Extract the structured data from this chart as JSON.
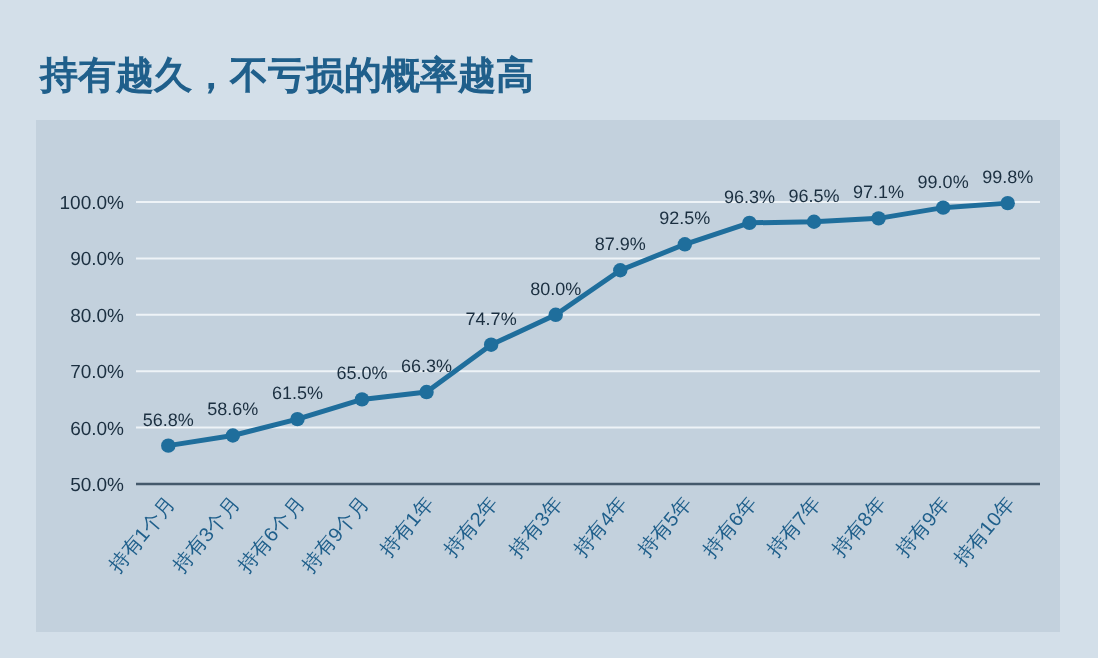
{
  "chart_data": {
    "type": "line",
    "title": "持有越久，不亏损的概率越高",
    "categories": [
      "持有1个月",
      "持有3个月",
      "持有6个月",
      "持有9个月",
      "持有1年",
      "持有2年",
      "持有3年",
      "持有4年",
      "持有5年",
      "持有6年",
      "持有7年",
      "持有8年",
      "持有9年",
      "持有10年"
    ],
    "series": [
      {
        "color": "#1f6e9c",
        "values": [
          56.8,
          58.6,
          61.5,
          65.0,
          66.3,
          74.7,
          80.0,
          87.9,
          92.5,
          96.3,
          96.5,
          97.1,
          99.0,
          99.8
        ],
        "value_labels": [
          "56.8%",
          "58.6%",
          "61.5%",
          "65.0%",
          "66.3%",
          "74.7%",
          "80.0%",
          "87.9%",
          "92.5%",
          "96.3%",
          "96.5%",
          "97.1%",
          "99.0%",
          "99.8%"
        ]
      }
    ],
    "ylim": [
      50,
      100
    ],
    "yticks": [
      {
        "value": 50,
        "label": "50.0%"
      },
      {
        "value": 60,
        "label": "60.0%"
      },
      {
        "value": 70,
        "label": "70.0%"
      },
      {
        "value": 80,
        "label": "80.0%"
      },
      {
        "value": 90,
        "label": "90.0%"
      },
      {
        "value": 100,
        "label": "100.0%"
      }
    ],
    "grid": "y",
    "marker": "circle",
    "line_style": "solid"
  }
}
